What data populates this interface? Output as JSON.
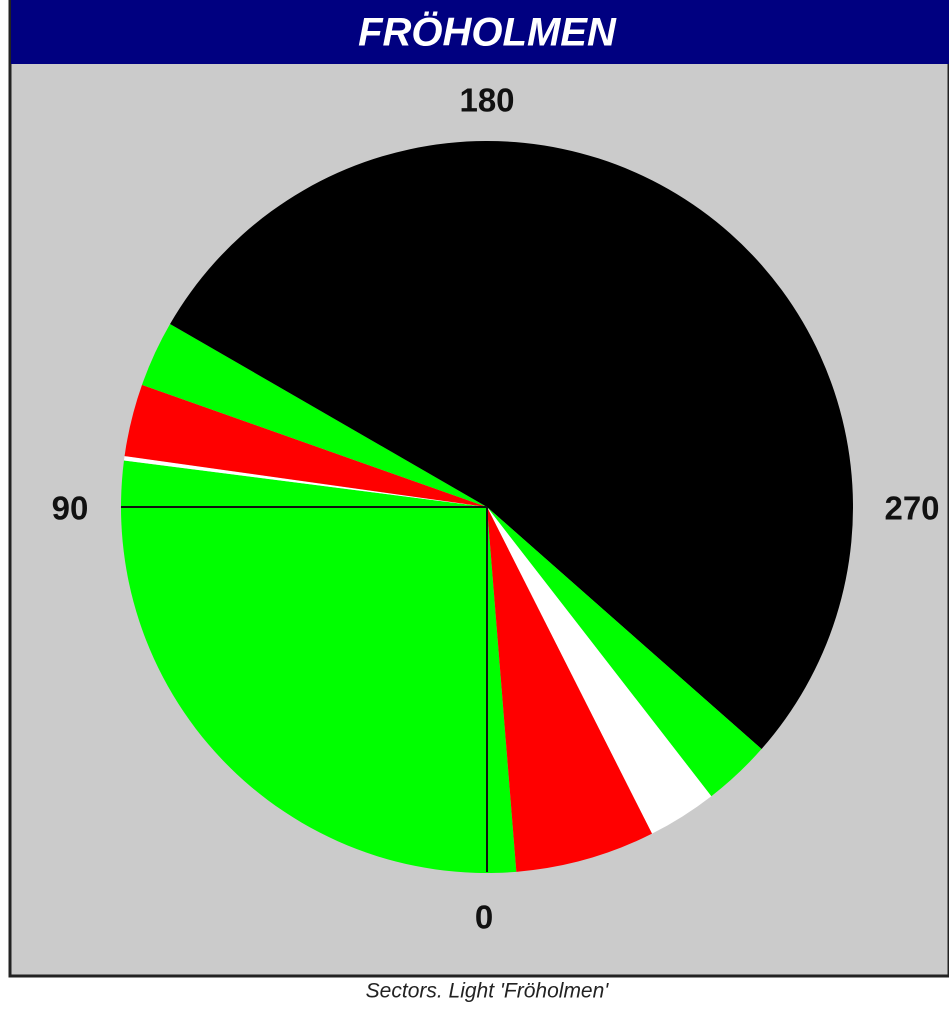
{
  "title": "FRÖHOLMEN",
  "caption": "Sectors. Light 'Fröholmen'",
  "compass": {
    "bottom": "0",
    "left": "90",
    "top": "180",
    "right": "270"
  },
  "sectors": [
    {
      "from": 355.4,
      "to": 97.3,
      "color": "#00ff00"
    },
    {
      "from": 97.3,
      "to": 98.0,
      "color": "#ffffff"
    },
    {
      "from": 98.0,
      "to": 109.5,
      "color": "#ff0000"
    },
    {
      "from": 109.5,
      "to": 120,
      "color": "#00ff00"
    },
    {
      "from": 120,
      "to": 311.4,
      "color": "#000000"
    },
    {
      "from": 311.4,
      "to": 322.2,
      "color": "#00ff00"
    },
    {
      "from": 322.2,
      "to": 333.2,
      "color": "#ffffff"
    },
    {
      "from": 333.2,
      "to": 355.4,
      "color": "#ff0000"
    }
  ]
}
